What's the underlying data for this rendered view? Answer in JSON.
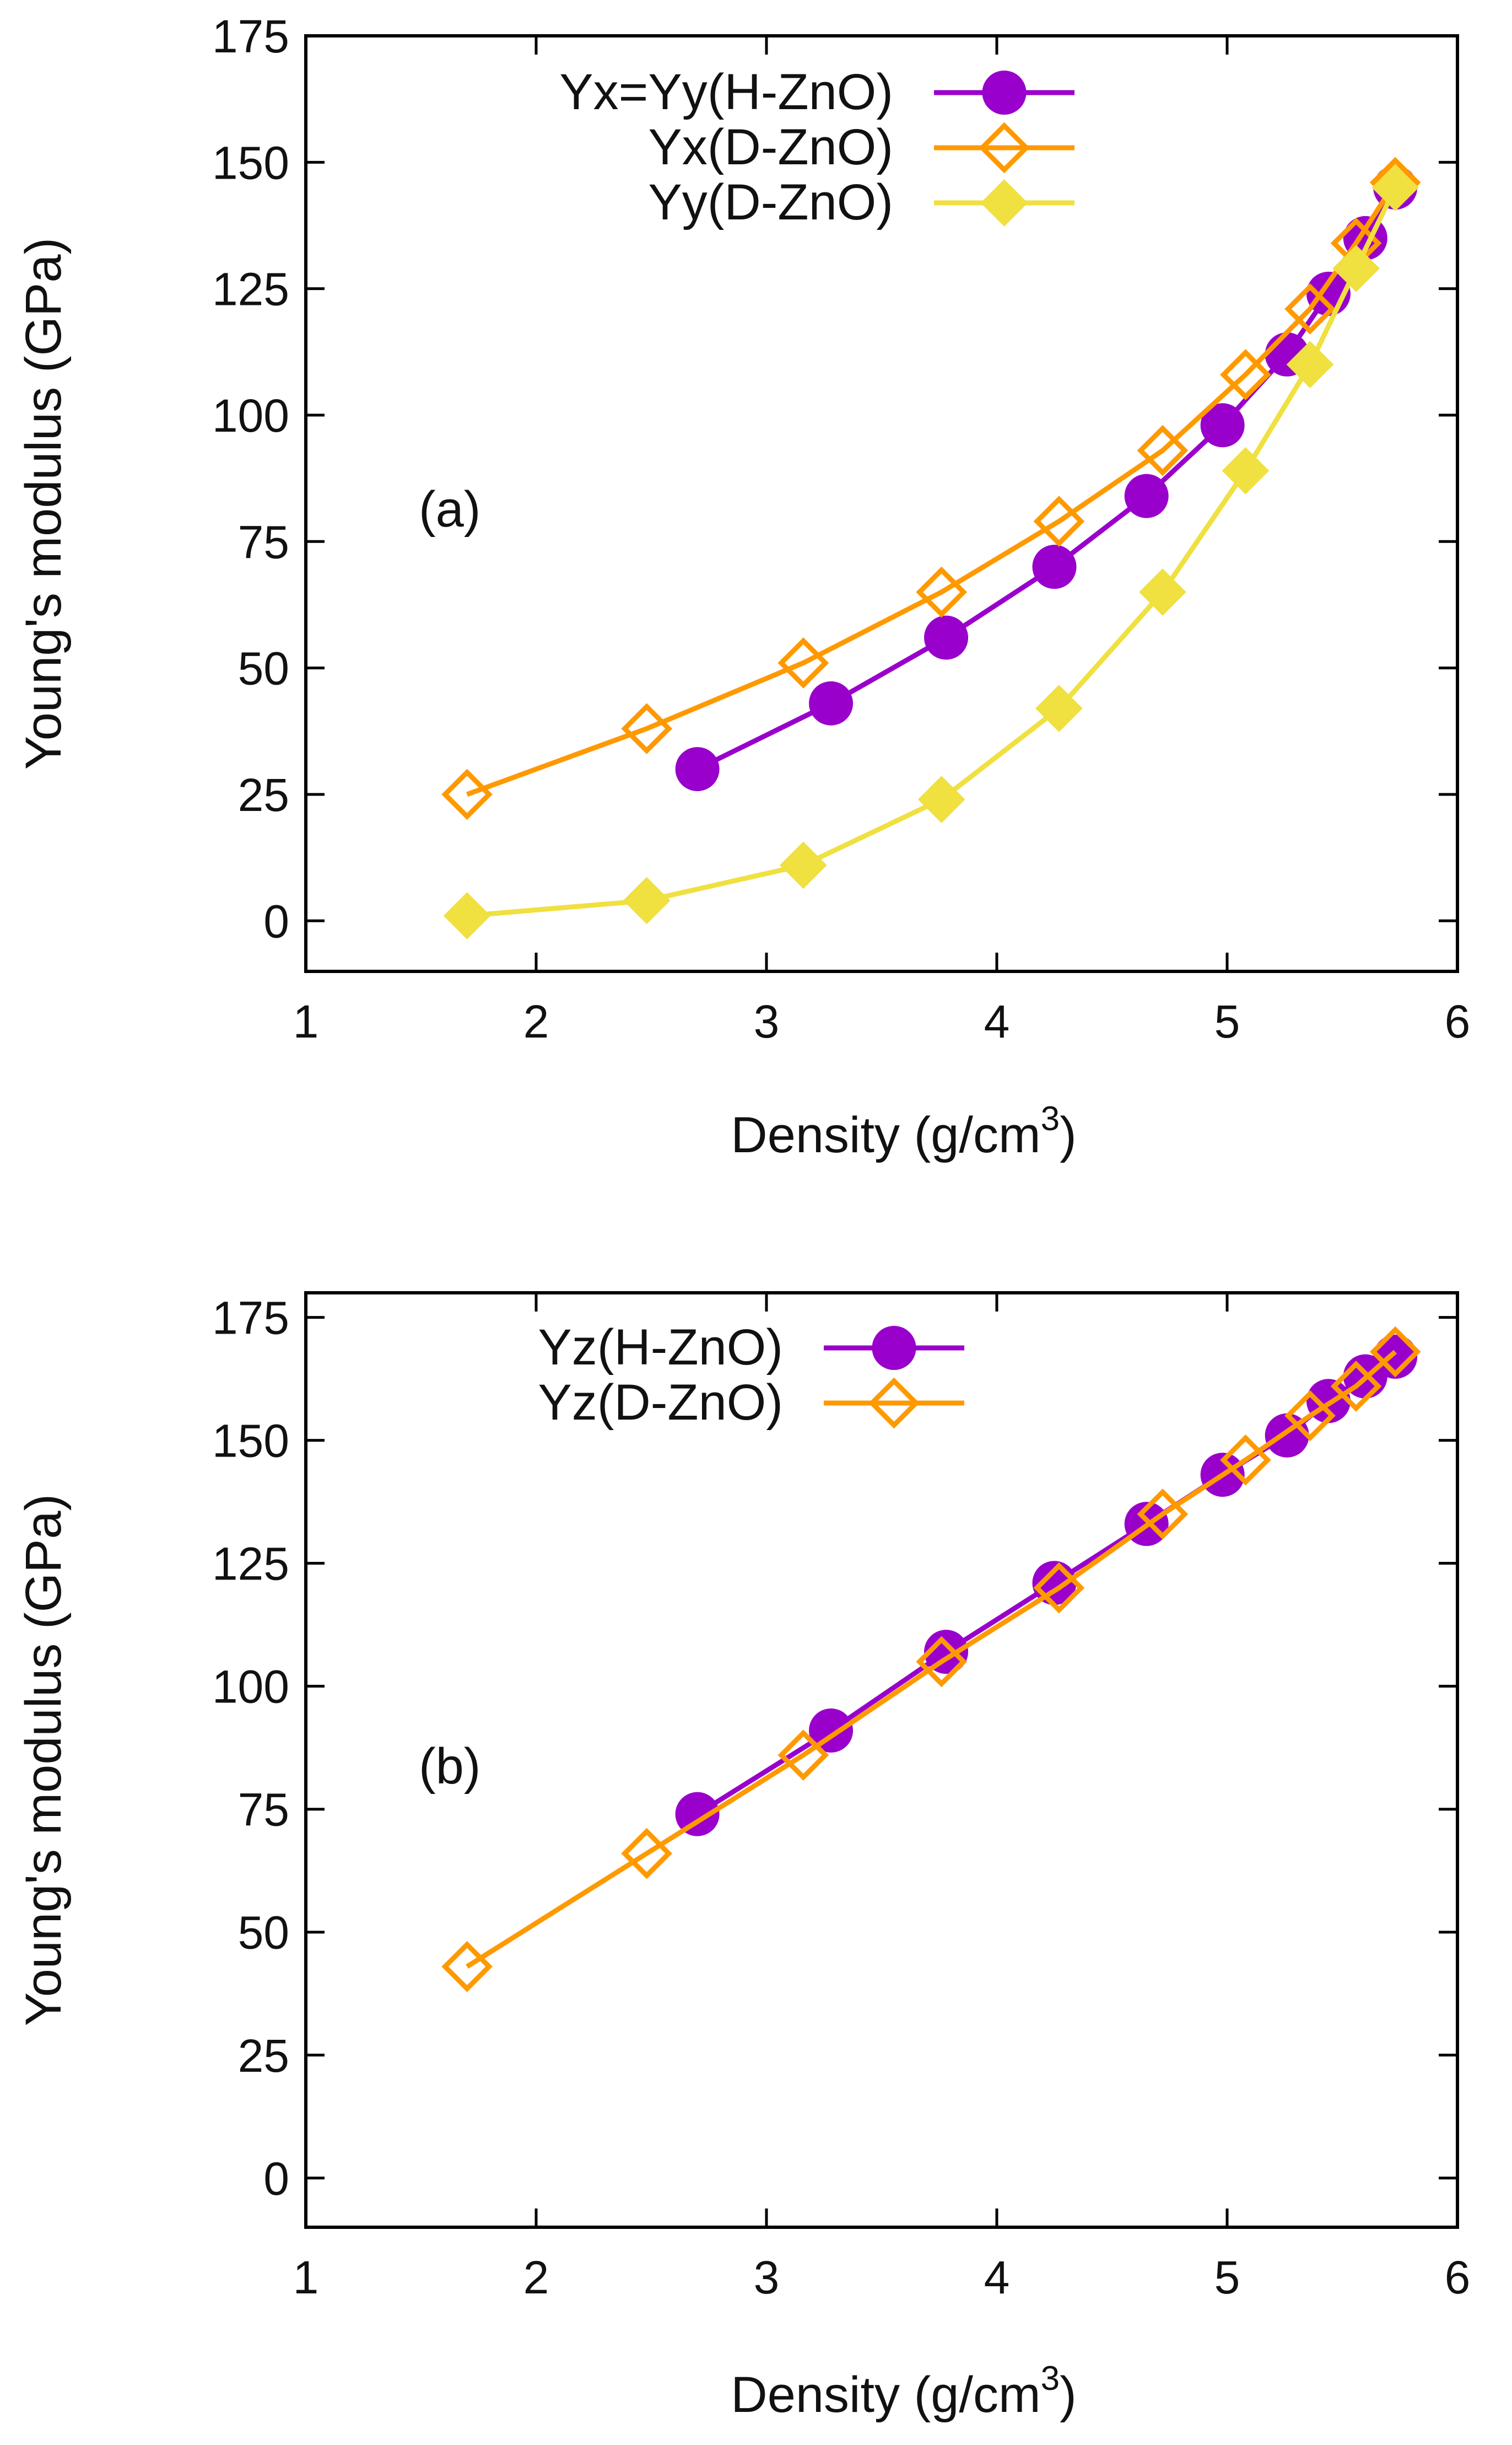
{
  "chart_data": [
    {
      "type": "line",
      "panel_label": "(a)",
      "xlabel": "Density (g/cm",
      "xlabel_sup": "3",
      "xlabel_end": ")",
      "ylabel": "Young's modulus (GPa)",
      "xlim": [
        1,
        6
      ],
      "ylim": [
        -10,
        175
      ],
      "xticks": [
        1,
        2,
        3,
        4,
        5,
        6
      ],
      "yticks": [
        0,
        25,
        50,
        75,
        100,
        125,
        150,
        175
      ],
      "legend_position": "top-right",
      "series": [
        {
          "name": "Yx=Yy(H-ZnO)",
          "color": "#9900cc",
          "marker": "filled-circle",
          "x": [
            2.7,
            3.28,
            3.78,
            4.25,
            4.65,
            4.98,
            5.26,
            5.44,
            5.6,
            5.73
          ],
          "values": [
            30,
            43,
            56,
            70,
            84,
            98,
            112,
            124,
            135,
            145
          ]
        },
        {
          "name": "Yx(D-ZnO)",
          "color": "#ff9900",
          "marker": "open-diamond",
          "x": [
            1.7,
            2.48,
            3.16,
            3.76,
            4.27,
            4.72,
            5.08,
            5.36,
            5.56,
            5.73
          ],
          "values": [
            25,
            38,
            51,
            65,
            79,
            93,
            108,
            121,
            134,
            146
          ]
        },
        {
          "name": "Yy(D-ZnO)",
          "color": "#f0e040",
          "marker": "filled-diamond",
          "x": [
            1.7,
            2.48,
            3.16,
            3.76,
            4.27,
            4.72,
            5.08,
            5.36,
            5.56,
            5.73
          ],
          "values": [
            1,
            4,
            11,
            24,
            42,
            65,
            89,
            110,
            129,
            145
          ]
        }
      ]
    },
    {
      "type": "line",
      "panel_label": "(b)",
      "xlabel": "Density (g/cm",
      "xlabel_sup": "3",
      "xlabel_end": ")",
      "ylabel": "Young's modulus (GPa)",
      "xlim": [
        1,
        6
      ],
      "ylim": [
        -10,
        180
      ],
      "xticks": [
        1,
        2,
        3,
        4,
        5,
        6
      ],
      "yticks": [
        0,
        25,
        50,
        75,
        100,
        125,
        150,
        175
      ],
      "legend_position": "top-left",
      "series": [
        {
          "name": "Yz(H-ZnO)",
          "color": "#9900cc",
          "marker": "filled-circle",
          "x": [
            2.7,
            3.28,
            3.78,
            4.25,
            4.65,
            4.98,
            5.26,
            5.44,
            5.6,
            5.73
          ],
          "values": [
            74,
            91,
            107,
            121,
            133,
            143,
            151,
            158,
            163,
            167
          ]
        },
        {
          "name": "Yz(D-ZnO)",
          "color": "#ff9900",
          "marker": "open-diamond",
          "x": [
            1.7,
            2.48,
            3.16,
            3.76,
            4.27,
            4.72,
            5.08,
            5.36,
            5.56,
            5.73
          ],
          "values": [
            43,
            66,
            86,
            105,
            120,
            135,
            146,
            155,
            161,
            168
          ]
        }
      ]
    }
  ]
}
